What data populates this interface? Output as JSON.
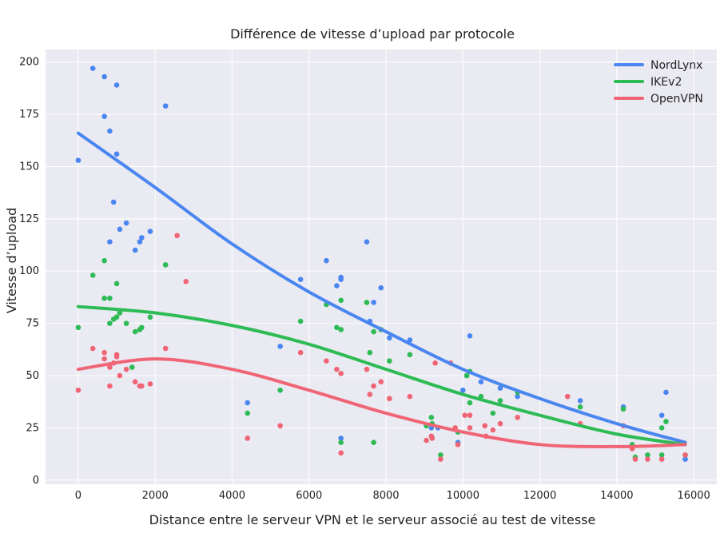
{
  "chart_data": {
    "type": "scatter",
    "title": "Différence de vitesse d’upload par protocole",
    "xlabel": "Distance entre le serveur VPN et le serveur associé au test de vitesse",
    "ylabel": "Vitesse d’upload",
    "xlim": [
      -850,
      16600
    ],
    "ylim": [
      -2,
      206
    ],
    "xticks": [
      0,
      2000,
      4000,
      6000,
      8000,
      10000,
      12000,
      14000,
      16000
    ],
    "yticks": [
      0,
      25,
      50,
      75,
      100,
      125,
      150,
      175,
      200
    ],
    "grid": true,
    "legend_position": "top-right",
    "series": [
      {
        "name": "NordLynx",
        "color": "#4a86f0",
        "points": [
          [
            0,
            153
          ],
          [
            380,
            197
          ],
          [
            680,
            193
          ],
          [
            680,
            174
          ],
          [
            820,
            167
          ],
          [
            820,
            114
          ],
          [
            1000,
            189
          ],
          [
            1000,
            156
          ],
          [
            920,
            133
          ],
          [
            1080,
            120
          ],
          [
            1250,
            123
          ],
          [
            1480,
            110
          ],
          [
            1600,
            114
          ],
          [
            1650,
            116
          ],
          [
            1870,
            119
          ],
          [
            2270,
            179
          ],
          [
            4400,
            37
          ],
          [
            5250,
            64
          ],
          [
            5780,
            96
          ],
          [
            6450,
            105
          ],
          [
            6720,
            93
          ],
          [
            6830,
            97
          ],
          [
            6830,
            96
          ],
          [
            6830,
            20
          ],
          [
            7500,
            114
          ],
          [
            7580,
            76
          ],
          [
            7680,
            85
          ],
          [
            7870,
            92
          ],
          [
            8090,
            68
          ],
          [
            8620,
            67
          ],
          [
            9180,
            25
          ],
          [
            9350,
            25
          ],
          [
            9870,
            18
          ],
          [
            10000,
            43
          ],
          [
            10100,
            50
          ],
          [
            10180,
            69
          ],
          [
            10470,
            47
          ],
          [
            10970,
            44
          ],
          [
            11420,
            40
          ],
          [
            13050,
            38
          ],
          [
            14170,
            35
          ],
          [
            15170,
            31
          ],
          [
            15280,
            42
          ],
          [
            15780,
            10
          ]
        ],
        "fit": [
          166,
          140,
          113,
          90,
          71,
          53,
          39,
          27,
          18
        ]
      },
      {
        "name": "IKEv2",
        "color": "#2dbb55",
        "points": [
          [
            0,
            73
          ],
          [
            380,
            98
          ],
          [
            680,
            105
          ],
          [
            680,
            87
          ],
          [
            820,
            87
          ],
          [
            820,
            75
          ],
          [
            920,
            77
          ],
          [
            1000,
            94
          ],
          [
            1000,
            78
          ],
          [
            1080,
            80
          ],
          [
            1250,
            75
          ],
          [
            1400,
            54
          ],
          [
            1480,
            71
          ],
          [
            1600,
            72
          ],
          [
            1650,
            73
          ],
          [
            1870,
            78
          ],
          [
            2270,
            103
          ],
          [
            4400,
            32
          ],
          [
            5250,
            43
          ],
          [
            5780,
            76
          ],
          [
            6450,
            84
          ],
          [
            6720,
            73
          ],
          [
            6830,
            86
          ],
          [
            6830,
            72
          ],
          [
            6830,
            18
          ],
          [
            7500,
            85
          ],
          [
            7580,
            61
          ],
          [
            7680,
            71
          ],
          [
            7680,
            18
          ],
          [
            7870,
            72
          ],
          [
            8090,
            57
          ],
          [
            8620,
            60
          ],
          [
            9050,
            26
          ],
          [
            9180,
            30
          ],
          [
            9200,
            27
          ],
          [
            9420,
            12
          ],
          [
            9870,
            23
          ],
          [
            10100,
            50
          ],
          [
            10180,
            52
          ],
          [
            10180,
            37
          ],
          [
            10470,
            40
          ],
          [
            10780,
            32
          ],
          [
            10970,
            38
          ],
          [
            11420,
            42
          ],
          [
            13050,
            35
          ],
          [
            14170,
            34
          ],
          [
            14400,
            17
          ],
          [
            14480,
            11
          ],
          [
            14800,
            12
          ],
          [
            15170,
            12
          ],
          [
            15170,
            25
          ],
          [
            15280,
            28
          ],
          [
            15780,
            12
          ]
        ],
        "fit": [
          83,
          80,
          74,
          65,
          53,
          41,
          31,
          22,
          17
        ]
      },
      {
        "name": "OpenVPN",
        "color": "#f06575",
        "points": [
          [
            0,
            43
          ],
          [
            380,
            63
          ],
          [
            680,
            58
          ],
          [
            680,
            61
          ],
          [
            820,
            54
          ],
          [
            820,
            45
          ],
          [
            920,
            56
          ],
          [
            1000,
            60
          ],
          [
            1000,
            59
          ],
          [
            1080,
            50
          ],
          [
            1250,
            53
          ],
          [
            1480,
            47
          ],
          [
            1600,
            45
          ],
          [
            1650,
            45
          ],
          [
            1870,
            46
          ],
          [
            2270,
            63
          ],
          [
            2570,
            117
          ],
          [
            2800,
            95
          ],
          [
            4400,
            20
          ],
          [
            5250,
            26
          ],
          [
            5780,
            61
          ],
          [
            6450,
            57
          ],
          [
            6720,
            53
          ],
          [
            6830,
            51
          ],
          [
            6830,
            13
          ],
          [
            7500,
            53
          ],
          [
            7580,
            41
          ],
          [
            7680,
            45
          ],
          [
            7870,
            47
          ],
          [
            8090,
            39
          ],
          [
            8620,
            40
          ],
          [
            9050,
            19
          ],
          [
            9180,
            21
          ],
          [
            9200,
            20
          ],
          [
            9280,
            56
          ],
          [
            9420,
            10
          ],
          [
            9680,
            56
          ],
          [
            9800,
            25
          ],
          [
            9870,
            17
          ],
          [
            10050,
            31
          ],
          [
            10180,
            31
          ],
          [
            10180,
            25
          ],
          [
            10570,
            26
          ],
          [
            10600,
            21
          ],
          [
            10780,
            24
          ],
          [
            10970,
            27
          ],
          [
            11420,
            30
          ],
          [
            12720,
            40
          ],
          [
            13050,
            27
          ],
          [
            14170,
            26
          ],
          [
            14400,
            15
          ],
          [
            14480,
            10
          ],
          [
            14800,
            10
          ],
          [
            15170,
            10
          ],
          [
            15780,
            12
          ]
        ],
        "fit": [
          53,
          58,
          53,
          43,
          32,
          23,
          17,
          16,
          17
        ]
      }
    ]
  }
}
